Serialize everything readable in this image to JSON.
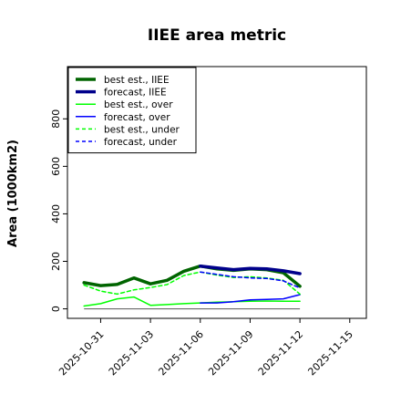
{
  "chart_data": {
    "type": "line",
    "title": "IIEE area metric",
    "xlabel": "",
    "ylabel": "Area (1000km2)",
    "ylim": [
      -40,
      1020
    ],
    "yticks": [
      0,
      200,
      400,
      600,
      800
    ],
    "xlim": [
      "2025-10-29",
      "2025-11-16"
    ],
    "xticks": [
      {
        "date": "2025-10-31",
        "label": "2025-10-31",
        "color": "#000000"
      },
      {
        "date": "2025-11-03",
        "label": "2025-11-03",
        "color": "#000000"
      },
      {
        "date": "2025-11-06",
        "label": "2025-11-06",
        "color": "#228b22"
      },
      {
        "date": "2025-11-09",
        "label": "2025-11-09",
        "color": "#000000"
      },
      {
        "date": "2025-11-12",
        "label": "2025-11-12",
        "color": "#000000"
      },
      {
        "date": "2025-11-15",
        "label": "2025-11-15",
        "color": "#000000"
      }
    ],
    "grid": false,
    "legend_position": "top-left",
    "series": [
      {
        "name": "best est., IIEE",
        "color": "#006400",
        "width": 3.5,
        "dash": "solid",
        "x": [
          "2025-10-30",
          "2025-10-31",
          "2025-11-01",
          "2025-11-02",
          "2025-11-03",
          "2025-11-04",
          "2025-11-05",
          "2025-11-06",
          "2025-11-07",
          "2025-11-08",
          "2025-11-09",
          "2025-11-10",
          "2025-11-11",
          "2025-11-12"
        ],
        "values": [
          110,
          98,
          103,
          130,
          105,
          120,
          158,
          180,
          168,
          162,
          168,
          165,
          152,
          95
        ]
      },
      {
        "name": "forecast, IIEE",
        "color": "#00008b",
        "width": 3.5,
        "dash": "solid",
        "x": [
          "2025-11-06",
          "2025-11-07",
          "2025-11-08",
          "2025-11-09",
          "2025-11-10",
          "2025-11-11",
          "2025-11-12"
        ],
        "values": [
          180,
          172,
          165,
          170,
          168,
          160,
          148
        ]
      },
      {
        "name": "best est., over",
        "color": "#00ff00",
        "width": 1.5,
        "dash": "solid",
        "x": [
          "2025-10-30",
          "2025-10-31",
          "2025-11-01",
          "2025-11-02",
          "2025-11-03",
          "2025-11-04",
          "2025-11-05",
          "2025-11-06",
          "2025-11-07",
          "2025-11-08",
          "2025-11-09",
          "2025-11-10",
          "2025-11-11",
          "2025-11-12"
        ],
        "values": [
          12,
          22,
          42,
          50,
          15,
          18,
          22,
          25,
          28,
          30,
          32,
          33,
          32,
          32
        ]
      },
      {
        "name": "forecast, over",
        "color": "#0000ff",
        "width": 1.5,
        "dash": "solid",
        "x": [
          "2025-11-06",
          "2025-11-07",
          "2025-11-08",
          "2025-11-09",
          "2025-11-10",
          "2025-11-11",
          "2025-11-12"
        ],
        "values": [
          25,
          25,
          30,
          38,
          40,
          42,
          60
        ]
      },
      {
        "name": "best est., under",
        "color": "#00ff00",
        "width": 1.5,
        "dash": "dashed",
        "x": [
          "2025-10-30",
          "2025-10-31",
          "2025-11-01",
          "2025-11-02",
          "2025-11-03",
          "2025-11-04",
          "2025-11-05",
          "2025-11-06",
          "2025-11-07",
          "2025-11-08",
          "2025-11-09",
          "2025-11-10",
          "2025-11-11",
          "2025-11-12"
        ],
        "values": [
          100,
          75,
          62,
          80,
          90,
          102,
          140,
          155,
          142,
          132,
          135,
          130,
          120,
          62
        ]
      },
      {
        "name": "forecast, under",
        "color": "#0000ff",
        "width": 1.5,
        "dash": "dashed",
        "x": [
          "2025-11-06",
          "2025-11-07",
          "2025-11-08",
          "2025-11-09",
          "2025-11-10",
          "2025-11-11",
          "2025-11-12"
        ],
        "values": [
          155,
          145,
          135,
          130,
          128,
          118,
          88
        ]
      }
    ]
  }
}
